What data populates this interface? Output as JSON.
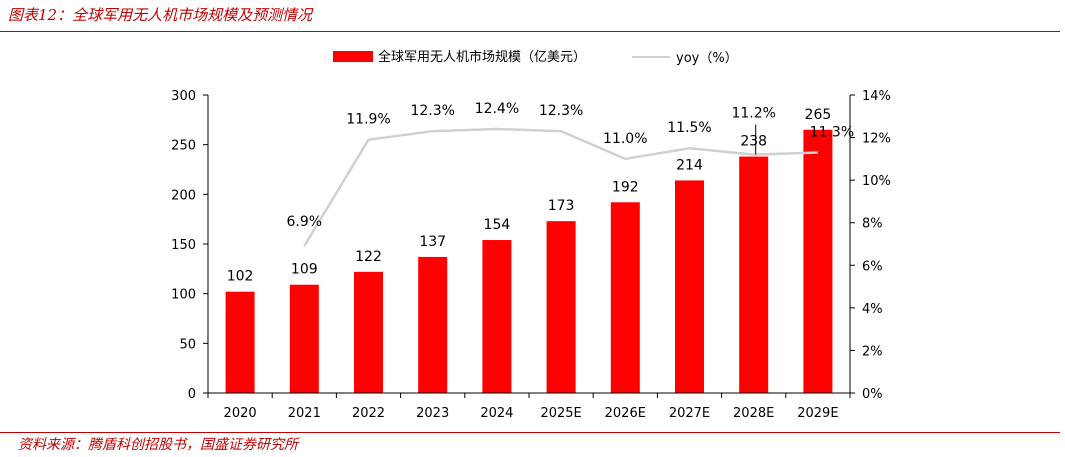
{
  "figure": {
    "title": "图表12：全球军用无人机市场规模及预测情况",
    "source": "资料来源：腾盾科创招股书，国盛证券研究所"
  },
  "colors": {
    "bar": "#ff0000",
    "line": "#d0d0d0",
    "accent": "#c00000",
    "axis": "#000000"
  },
  "chart_data": {
    "type": "bar",
    "categories": [
      "2020",
      "2021",
      "2022",
      "2023",
      "2024",
      "2025E",
      "2026E",
      "2027E",
      "2028E",
      "2029E"
    ],
    "series": [
      {
        "name": "全球军用无人机市场规模（亿美元）",
        "type": "bar",
        "axis": "left",
        "values": [
          102,
          109,
          122,
          137,
          154,
          173,
          192,
          214,
          238,
          265
        ],
        "labels": [
          "102",
          "109",
          "122",
          "137",
          "154",
          "173",
          "192",
          "214",
          "238",
          "265"
        ]
      },
      {
        "name": "yoy（%）",
        "type": "line",
        "axis": "right",
        "values": [
          null,
          6.9,
          11.9,
          12.3,
          12.4,
          12.3,
          11.0,
          11.5,
          11.2,
          11.3
        ],
        "labels": [
          "",
          "6.9%",
          "11.9%",
          "12.3%",
          "12.4%",
          "12.3%",
          "11.0%",
          "11.5%",
          "11.2%",
          "11.3%"
        ]
      }
    ],
    "y_left": {
      "ylim": [
        0,
        300
      ],
      "ticks": [
        "0",
        "50",
        "100",
        "150",
        "200",
        "250",
        "300"
      ]
    },
    "y_right": {
      "ylim": [
        0,
        14
      ],
      "ticks": [
        "0%",
        "2%",
        "4%",
        "6%",
        "8%",
        "10%",
        "12%",
        "14%"
      ]
    },
    "legend": "top-center",
    "grid": false
  }
}
